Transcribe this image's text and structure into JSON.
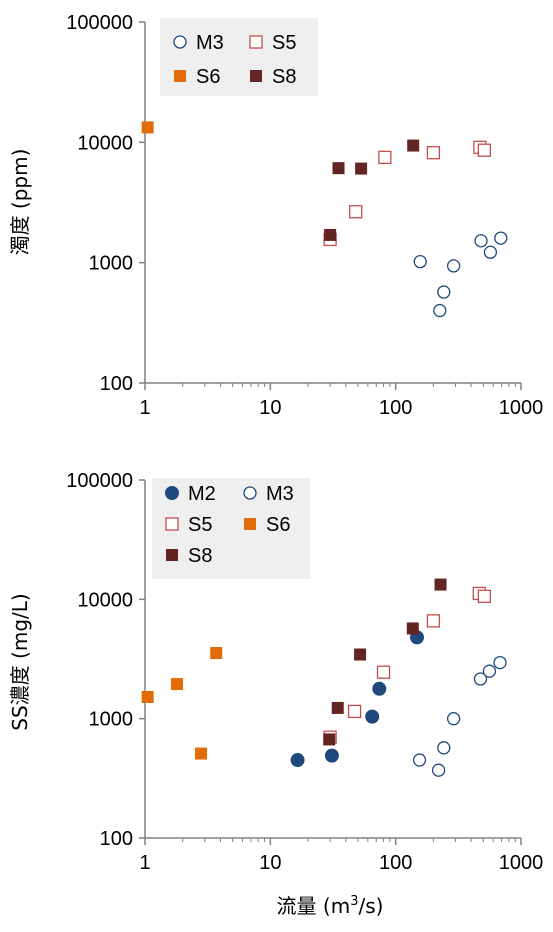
{
  "xlabel": {
    "main": "流量 (m",
    "sup": "3",
    "tail": "/s)"
  },
  "colors": {
    "M": "#1f497d",
    "S5": "#c0504d",
    "S6": "#e36c09",
    "S8": "#632523",
    "axis": "#808080",
    "legend_bg": "#efefef"
  },
  "chart_data": [
    {
      "type": "scatter",
      "ylabel": "濁度 (ppm)",
      "xscale": "log",
      "yscale": "log",
      "xlim": [
        1,
        1000
      ],
      "ylim": [
        100,
        100000
      ],
      "xticks": [
        "1",
        "10",
        "100",
        "1000"
      ],
      "yticks": [
        "100",
        "1000",
        "10000",
        "100000"
      ],
      "grid": false,
      "legend_position": "top-left",
      "series": [
        {
          "name": "M3",
          "marker": "circle-open",
          "color": "#1f497d",
          "points": [
            [
              157,
              1020
            ],
            [
              225,
              400
            ],
            [
              242,
              570
            ],
            [
              290,
              940
            ],
            [
              480,
              1520
            ],
            [
              570,
              1220
            ],
            [
              690,
              1600
            ]
          ]
        },
        {
          "name": "S5",
          "marker": "square-open",
          "color": "#c0504d",
          "points": [
            [
              30,
              1560
            ],
            [
              48,
              2650
            ],
            [
              82,
              7500
            ],
            [
              200,
              8200
            ],
            [
              470,
              9100
            ],
            [
              510,
              8600
            ]
          ]
        },
        {
          "name": "S6",
          "marker": "square-filled",
          "color": "#e36c09",
          "points": [
            [
              1.05,
              13300
            ]
          ]
        },
        {
          "name": "S8",
          "marker": "square-filled",
          "color": "#632523",
          "points": [
            [
              30,
              1700
            ],
            [
              35,
              6100
            ],
            [
              53,
              6050
            ],
            [
              138,
              9400
            ]
          ]
        }
      ]
    },
    {
      "type": "scatter",
      "ylabel": "SS濃度 (mg/L)",
      "xscale": "log",
      "yscale": "log",
      "xlim": [
        1,
        1000
      ],
      "ylim": [
        100,
        100000
      ],
      "xticks": [
        "1",
        "10",
        "100",
        "1000"
      ],
      "yticks": [
        "100",
        "1000",
        "10000",
        "100000"
      ],
      "grid": false,
      "legend_position": "top-left",
      "series": [
        {
          "name": "M2",
          "marker": "circle-filled",
          "color": "#1f497d",
          "points": [
            [
              16.5,
              450
            ],
            [
              31,
              490
            ],
            [
              65,
              1040
            ],
            [
              74,
              1780
            ],
            [
              148,
              4800
            ]
          ]
        },
        {
          "name": "M3",
          "marker": "circle-open",
          "color": "#1f497d",
          "points": [
            [
              155,
              450
            ],
            [
              220,
              370
            ],
            [
              242,
              570
            ],
            [
              290,
              1000
            ],
            [
              475,
              2150
            ],
            [
              560,
              2500
            ],
            [
              680,
              2950
            ]
          ]
        },
        {
          "name": "S5",
          "marker": "square-open",
          "color": "#c0504d",
          "points": [
            [
              30,
              700
            ],
            [
              47,
              1150
            ],
            [
              80,
              2450
            ],
            [
              200,
              6600
            ],
            [
              465,
              11200
            ],
            [
              510,
              10600
            ]
          ]
        },
        {
          "name": "S6",
          "marker": "square-filled",
          "color": "#e36c09",
          "points": [
            [
              1.05,
              1520
            ],
            [
              1.8,
              1950
            ],
            [
              2.8,
              510
            ],
            [
              3.7,
              3550
            ]
          ]
        },
        {
          "name": "S8",
          "marker": "square-filled",
          "color": "#632523",
          "points": [
            [
              29.5,
              670
            ],
            [
              34.5,
              1230
            ],
            [
              52,
              3450
            ],
            [
              137,
              5700
            ],
            [
              228,
              13300
            ]
          ]
        }
      ]
    }
  ]
}
